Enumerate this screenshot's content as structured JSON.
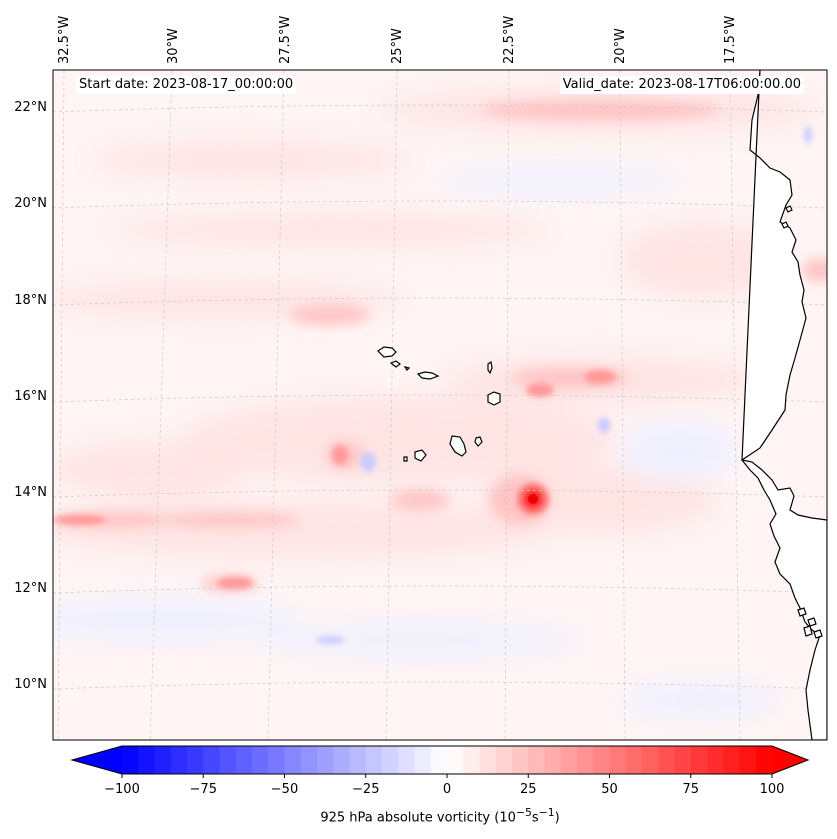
{
  "header": {
    "start_date": "Start date: 2023-08-17_00:00:00",
    "valid_date": "Valid_date: 2023-08-17T06:00:00.00"
  },
  "map": {
    "lon_labels": [
      "32.5°W",
      "30°W",
      "27.5°W",
      "25°W",
      "22.5°W",
      "20°W",
      "17.5°W"
    ],
    "lat_labels": [
      "22°N",
      "20°N",
      "18°N",
      "16°N",
      "14°N",
      "12°N",
      "10°N"
    ],
    "land_color": "#ffffff",
    "coastline_color": "#000000",
    "gridline_color": "#c8c8c8"
  },
  "colorbar": {
    "label_prefix": "925 hPa absolute vorticity (10",
    "label_exp1": "−5",
    "label_mid": "s",
    "label_exp2": "−1",
    "label_suffix": ")",
    "ticks": [
      "−100",
      "−75",
      "−50",
      "−25",
      "0",
      "25",
      "50",
      "75",
      "100"
    ],
    "min": -100,
    "max": 100,
    "step": 5,
    "colormap": "bwr",
    "low_color": "#0000ff",
    "mid_color": "#ffffff",
    "high_color": "#ff0000"
  }
}
